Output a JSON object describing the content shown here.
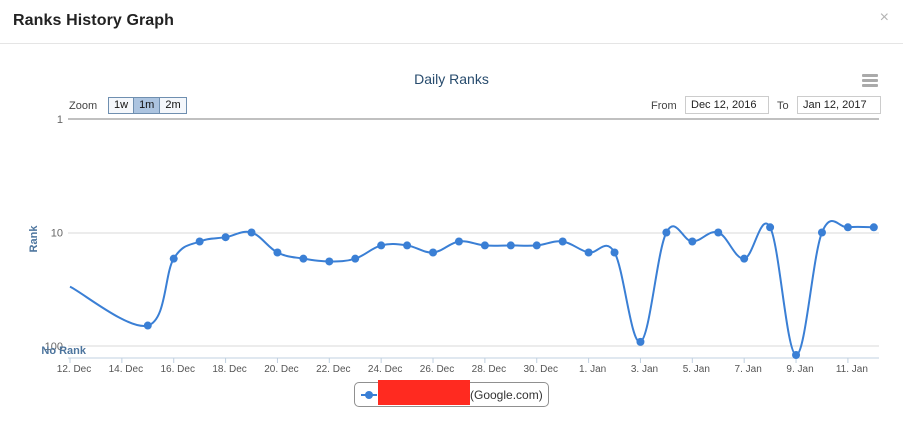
{
  "modal": {
    "title": "Ranks History Graph",
    "close_label": "×"
  },
  "toolbar": {
    "zoom_label": "Zoom",
    "zoom_buttons": [
      "1w",
      "1m",
      "2m"
    ],
    "zoom_active": "1m",
    "from_label": "From",
    "from_value": "Dec 12, 2016",
    "to_label": "To",
    "to_value": "Jan 12, 2017"
  },
  "icons": {
    "menu": "menu-icon",
    "close": "close-icon",
    "legend_marker": "circle-marker-icon"
  },
  "colors": {
    "series": "#3a7fd5",
    "title": "#274b6d",
    "redaction": "#ff2a20"
  },
  "chart_data": {
    "type": "line",
    "title": "Daily Ranks",
    "ylabel": "Rank",
    "y_scale": "log-reversed",
    "ylim": [
      1,
      100
    ],
    "y_ticks": [
      "1",
      "10",
      "100"
    ],
    "y_extra_label": "No Rank",
    "x_ticks": [
      "12. Dec",
      "14. Dec",
      "16. Dec",
      "18. Dec",
      "20. Dec",
      "22. Dec",
      "24. Dec",
      "26. Dec",
      "28. Dec",
      "30. Dec",
      "1. Jan",
      "3. Jan",
      "5. Jan",
      "7. Jan",
      "9. Jan",
      "11. Jan"
    ],
    "grid": true,
    "legend_position": "bottom-center",
    "series": [
      {
        "name": "(Google.com)",
        "x": [
          "2016-12-12",
          "2016-12-15",
          "2016-12-16",
          "2016-12-17",
          "2016-12-18",
          "2016-12-19",
          "2016-12-20",
          "2016-12-21",
          "2016-12-22",
          "2016-12-23",
          "2016-12-24",
          "2016-12-25",
          "2016-12-26",
          "2016-12-27",
          "2016-12-28",
          "2016-12-29",
          "2016-12-30",
          "2016-12-31",
          "2017-01-01",
          "2017-01-02",
          "2017-01-03",
          "2017-01-04",
          "2017-01-05",
          "2017-01-06",
          "2017-01-07",
          "2017-01-08",
          "2017-01-09",
          "2017-01-10",
          "2017-01-11",
          "2017-01-12"
        ],
        "values": [
          30,
          66,
          17,
          12,
          11,
          10,
          15,
          17,
          18,
          17,
          13,
          13,
          15,
          12,
          13,
          13,
          13,
          12,
          15,
          15,
          92,
          10,
          12,
          10,
          17,
          9,
          120,
          10,
          9,
          9
        ]
      }
    ]
  }
}
